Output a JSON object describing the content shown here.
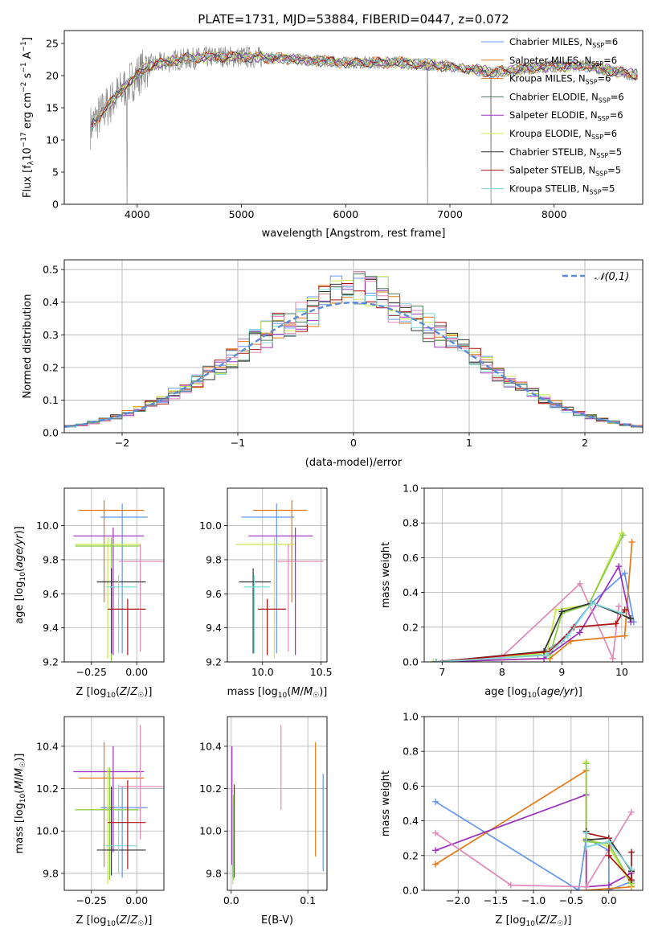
{
  "title": "PLATE=1731, MJD=53884, FIBERID=0447, z=0.072",
  "colors": {
    "Chabrier MILES": "#6495ed",
    "Salpeter MILES": "#e47916",
    "Kroupa MILES": "#d8782f",
    "Chabrier ELODIE": "#4a7a5a",
    "Salpeter ELODIE": "#9b30c0",
    "Kroupa ELODIE": "#c8e84a",
    "Chabrier STELIB": "#333333",
    "Salpeter STELIB": "#aa1111",
    "Kroupa STELIB": "#7fd6dc",
    "extra_pink": "#e088b8",
    "extra_green": "#88cc44",
    "gaussian": "#5b8bd6",
    "grid": "#b0b0b0",
    "data_spectrum": "#808080"
  },
  "chart_data": [
    {
      "id": "spectrum",
      "type": "line",
      "xlabel": "wavelength [Angstrom, rest frame]",
      "ylabel": "Flux [f_λ 10^-17 erg cm^-2 s^-1 A^-1]",
      "xlim": [
        3300,
        8850
      ],
      "ylim": [
        0,
        27
      ],
      "xticks": [
        4000,
        5000,
        6000,
        7000,
        8000
      ],
      "yticks": [
        0,
        5,
        10,
        15,
        20,
        25
      ],
      "grid": false,
      "legend_position": "top-right",
      "series": [
        {
          "name": "Chabrier MILES, N_SSP=6"
        },
        {
          "name": "Salpeter MILES, N_SSP=6"
        },
        {
          "name": "Kroupa MILES, N_SSP=6"
        },
        {
          "name": "Chabrier ELODIE, N_SSP=6"
        },
        {
          "name": "Salpeter ELODIE, N_SSP=6"
        },
        {
          "name": "Kroupa ELODIE, N_SSP=6"
        },
        {
          "name": "Chabrier STELIB, N_SSP=5"
        },
        {
          "name": "Salpeter STELIB, N_SSP=5"
        },
        {
          "name": "Kroupa STELIB, N_SSP=5"
        }
      ],
      "continuum_anchor": {
        "x": [
          3550,
          3700,
          3900,
          4100,
          4400,
          4800,
          5200,
          5600,
          6000,
          6500,
          7000,
          7400,
          7700,
          8000,
          8300,
          8800
        ],
        "y": [
          12.0,
          15.0,
          18.5,
          21.5,
          22.5,
          23.0,
          22.8,
          22.5,
          22.0,
          22.0,
          21.5,
          20.5,
          21.0,
          21.5,
          21.5,
          20.0
        ]
      }
    },
    {
      "id": "residuals",
      "type": "histogram",
      "xlabel": "(data-model)/error",
      "ylabel": "Normed distribution",
      "xlim": [
        -2.5,
        2.5
      ],
      "ylim": [
        0,
        0.53
      ],
      "xticks": [
        -2,
        -1,
        0,
        1,
        2
      ],
      "yticks": [
        0.0,
        0.1,
        0.2,
        0.3,
        0.4,
        0.5
      ],
      "grid": true,
      "legend": "𝒩(0,1)",
      "legend_position": "top-right",
      "bin_width": 0.1
    },
    {
      "id": "age_vs_Z",
      "type": "errorbar",
      "xlabel": "Z [log10(Z/Z☉)]",
      "ylabel": "age  [log10(age/yr)]",
      "xlim": [
        -0.4,
        0.15
      ],
      "ylim": [
        9.2,
        10.22
      ],
      "xticks": [
        -0.25,
        0.0
      ],
      "yticks": [
        9.2,
        9.4,
        9.6,
        9.8,
        10.0
      ],
      "grid": true,
      "points": [
        {
          "series": "Chabrier MILES",
          "x": -0.08,
          "xerr": [
            0.12,
            0.14
          ],
          "y": 10.05,
          "yerr": [
            0.8,
            0.08
          ]
        },
        {
          "series": "Salpeter MILES",
          "x": -0.18,
          "xerr": [
            0.14,
            0.22
          ],
          "y": 10.09,
          "yerr": [
            0.54,
            0.06
          ]
        },
        {
          "series": "Salpeter ELODIE",
          "x": -0.13,
          "xerr": [
            0.22,
            0.17
          ],
          "y": 9.94,
          "yerr": [
            0.7,
            0.05
          ]
        },
        {
          "series": "Kroupa ELODIE",
          "x": -0.16,
          "xerr": [
            0.18,
            0.18
          ],
          "y": 9.89,
          "yerr": [
            0.67,
            0.04
          ]
        },
        {
          "series": "extra_green",
          "x": -0.14,
          "xerr": [
            0.2,
            0.16
          ],
          "y": 9.88,
          "yerr": [
            0.68,
            0.05
          ]
        },
        {
          "series": "extra_pink",
          "x": 0.02,
          "xerr": [
            0.12,
            0.13
          ],
          "y": 9.79,
          "yerr": [
            0.53,
            0.1
          ]
        },
        {
          "series": "Chabrier STELIB",
          "x": -0.14,
          "xerr": [
            0.08,
            0.19
          ],
          "y": 9.67,
          "yerr": [
            0.42,
            0.08
          ]
        },
        {
          "series": "Kroupa STELIB",
          "x": -0.1,
          "xerr": [
            0.07,
            0.1
          ],
          "y": 9.64,
          "yerr": [
            0.39,
            0.07
          ]
        },
        {
          "series": "Salpeter STELIB",
          "x": -0.05,
          "xerr": [
            0.11,
            0.1
          ],
          "y": 9.51,
          "yerr": [
            0.27,
            0.06
          ]
        }
      ]
    },
    {
      "id": "age_vs_mass",
      "type": "errorbar",
      "xlabel": "mass [log10(M/M☉)]",
      "ylabel": "",
      "xlim": [
        9.7,
        10.55
      ],
      "ylim": [
        9.2,
        10.22
      ],
      "xticks": [
        10.0,
        10.5
      ],
      "yticks": [
        9.2,
        9.4,
        9.6,
        9.8,
        10.0
      ],
      "grid": true,
      "points": [
        {
          "series": "Chabrier MILES",
          "x": 10.12,
          "xerr": [
            0.3,
            0.15
          ],
          "y": 10.05,
          "yerr": [
            0.8,
            0.08
          ]
        },
        {
          "series": "Salpeter MILES",
          "x": 10.25,
          "xerr": [
            0.33,
            0.13
          ],
          "y": 10.09,
          "yerr": [
            0.54,
            0.06
          ]
        },
        {
          "series": "Salpeter ELODIE",
          "x": 10.28,
          "xerr": [
            0.4,
            0.15
          ],
          "y": 9.94,
          "yerr": [
            0.7,
            0.05
          ]
        },
        {
          "series": "Kroupa ELODIE",
          "x": 10.1,
          "xerr": [
            0.33,
            0.17
          ],
          "y": 9.89,
          "yerr": [
            0.67,
            0.04
          ]
        },
        {
          "series": "extra_pink",
          "x": 10.22,
          "xerr": [
            0.1,
            0.3
          ],
          "y": 9.79,
          "yerr": [
            0.53,
            0.1
          ]
        },
        {
          "series": "Chabrier STELIB",
          "x": 9.92,
          "xerr": [
            0.12,
            0.15
          ],
          "y": 9.67,
          "yerr": [
            0.42,
            0.08
          ]
        },
        {
          "series": "Kroupa STELIB",
          "x": 9.93,
          "xerr": [
            0.09,
            0.13
          ],
          "y": 9.64,
          "yerr": [
            0.39,
            0.07
          ]
        },
        {
          "series": "Salpeter STELIB",
          "x": 10.04,
          "xerr": [
            0.08,
            0.16
          ],
          "y": 9.51,
          "yerr": [
            0.27,
            0.06
          ]
        }
      ]
    },
    {
      "id": "weight_vs_age",
      "type": "line",
      "xlabel": "age  [log10(age/yr)]",
      "ylabel": "mass weight",
      "xlim": [
        6.7,
        10.35
      ],
      "ylim": [
        0,
        1.0
      ],
      "xticks": [
        7,
        8,
        9,
        10
      ],
      "yticks": [
        0.0,
        0.2,
        0.4,
        0.6,
        0.8,
        1.0
      ],
      "grid": true,
      "series": [
        {
          "series": "Chabrier MILES",
          "x": [
            6.85,
            8.6,
            9.0,
            9.5,
            10.05,
            10.2
          ],
          "y": [
            0.0,
            0.04,
            0.12,
            0.34,
            0.51,
            0.23
          ]
        },
        {
          "series": "Salpeter MILES",
          "x": [
            6.9,
            8.8,
            9.15,
            10.05,
            10.17
          ],
          "y": [
            0.0,
            0.02,
            0.12,
            0.15,
            0.69
          ]
        },
        {
          "series": "Salpeter ELODIE",
          "x": [
            6.9,
            8.7,
            9.3,
            9.95,
            10.15
          ],
          "y": [
            0.0,
            0.02,
            0.17,
            0.55,
            0.23
          ]
        },
        {
          "series": "Kroupa ELODIE",
          "x": [
            6.85,
            8.75,
            8.9,
            9.45,
            10.0
          ],
          "y": [
            0.0,
            0.05,
            0.3,
            0.33,
            0.74
          ]
        },
        {
          "series": "extra_green",
          "x": [
            6.9,
            8.8,
            9.0,
            9.45,
            10.02
          ],
          "y": [
            0.0,
            0.04,
            0.28,
            0.33,
            0.73
          ]
        },
        {
          "series": "extra_pink",
          "x": [
            7.0,
            8.0,
            9.3,
            9.85,
            9.95
          ],
          "y": [
            0.0,
            0.03,
            0.45,
            0.02,
            0.32
          ]
        },
        {
          "series": "Chabrier STELIB",
          "x": [
            6.9,
            8.7,
            9.0,
            9.5,
            10.15
          ],
          "y": [
            0.0,
            0.06,
            0.29,
            0.34,
            0.25
          ]
        },
        {
          "series": "Salpeter STELIB",
          "x": [
            6.9,
            8.8,
            9.2,
            9.9,
            10.05
          ],
          "y": [
            0.0,
            0.06,
            0.2,
            0.22,
            0.3
          ]
        },
        {
          "series": "Kroupa STELIB",
          "x": [
            6.9,
            8.75,
            9.1,
            9.5,
            10.0
          ],
          "y": [
            0.0,
            0.04,
            0.15,
            0.34,
            0.28
          ]
        }
      ]
    },
    {
      "id": "mass_vs_Z",
      "type": "errorbar",
      "xlabel": "Z [log10(Z/Z☉)]",
      "ylabel": "mass [log10(M/M☉)]",
      "xlim": [
        -0.4,
        0.15
      ],
      "ylim": [
        9.72,
        10.54
      ],
      "xticks": [
        -0.25,
        0.0
      ],
      "yticks": [
        9.8,
        10.0,
        10.2,
        10.4
      ],
      "grid": true,
      "points": [
        {
          "series": "Chabrier MILES",
          "x": -0.08,
          "xerr": [
            0.12,
            0.14
          ],
          "y": 10.11,
          "yerr": [
            0.33,
            0.1
          ]
        },
        {
          "series": "Salpeter MILES",
          "x": -0.18,
          "xerr": [
            0.14,
            0.22
          ],
          "y": 10.25,
          "yerr": [
            0.42,
            0.17
          ]
        },
        {
          "series": "Salpeter ELODIE",
          "x": -0.13,
          "xerr": [
            0.22,
            0.17
          ],
          "y": 10.28,
          "yerr": [
            0.38,
            0.12
          ]
        },
        {
          "series": "Kroupa ELODIE",
          "x": -0.16,
          "xerr": [
            0.18,
            0.18
          ],
          "y": 10.1,
          "yerr": [
            0.35,
            0.2
          ]
        },
        {
          "series": "extra_green",
          "x": -0.15,
          "xerr": [
            0.19,
            0.16
          ],
          "y": 10.1,
          "yerr": [
            0.33,
            0.2
          ]
        },
        {
          "series": "extra_pink",
          "x": 0.02,
          "xerr": [
            0.12,
            0.13
          ],
          "y": 10.21,
          "yerr": [
            0.25,
            0.29
          ]
        },
        {
          "series": "Chabrier STELIB",
          "x": -0.14,
          "xerr": [
            0.08,
            0.19
          ],
          "y": 9.91,
          "yerr": [
            0.12,
            0.3
          ]
        },
        {
          "series": "Kroupa STELIB",
          "x": -0.1,
          "xerr": [
            0.07,
            0.1
          ],
          "y": 9.93,
          "yerr": [
            0.13,
            0.29
          ]
        },
        {
          "series": "Salpeter STELIB",
          "x": -0.05,
          "xerr": [
            0.11,
            0.1
          ],
          "y": 10.04,
          "yerr": [
            0.22,
            0.2
          ]
        }
      ]
    },
    {
      "id": "mass_vs_ebv",
      "type": "errorbar",
      "xlabel": "E(B-V)",
      "ylabel": "",
      "xlim": [
        -0.005,
        0.125
      ],
      "ylim": [
        9.72,
        10.54
      ],
      "xticks": [
        0.0,
        0.1
      ],
      "yticks": [
        9.8,
        10.0,
        10.2,
        10.4
      ],
      "grid": true,
      "points": [
        {
          "series": "Chabrier MILES",
          "x": 0.12,
          "y": 10.04,
          "yerr": [
            0.23,
            0.23
          ]
        },
        {
          "series": "Salpeter MILES",
          "x": 0.11,
          "y": 10.15,
          "yerr": [
            0.27,
            0.27
          ]
        },
        {
          "series": "extra_pink",
          "x": 0.065,
          "y": 10.3,
          "yerr": [
            0.2,
            0.2
          ]
        },
        {
          "series": "Salpeter ELODIE",
          "x": 0.001,
          "y": 10.12,
          "yerr": [
            0.28,
            0.28
          ]
        },
        {
          "series": "Kroupa ELODIE",
          "x": 0.002,
          "y": 10.0,
          "yerr": [
            0.25,
            0.25
          ]
        },
        {
          "series": "Salpeter STELIB",
          "x": 0.004,
          "y": 10.0,
          "yerr": [
            0.22,
            0.22
          ]
        },
        {
          "series": "extra_green",
          "x": 0.003,
          "y": 9.97,
          "yerr": [
            0.2,
            0.2
          ]
        },
        {
          "series": "Kroupa STELIB",
          "x": 0.002,
          "y": 9.95,
          "yerr": [
            0.17,
            0.17
          ]
        }
      ]
    },
    {
      "id": "weight_vs_Z",
      "type": "line",
      "xlabel": "Z [log10(Z/Z☉)]",
      "ylabel": "mass weight",
      "xlim": [
        -2.45,
        0.45
      ],
      "ylim": [
        0,
        1.0
      ],
      "xticks": [
        -2.0,
        -1.5,
        -1.0,
        -0.5,
        0.0
      ],
      "yticks": [
        0.0,
        0.2,
        0.4,
        0.6,
        0.8,
        1.0
      ],
      "grid": true,
      "series": [
        {
          "series": "Chabrier MILES",
          "x": [
            -2.3,
            -0.4,
            -0.3,
            0.0,
            0.0,
            0.3
          ],
          "y": [
            0.51,
            0.0,
            0.3,
            0.23,
            0.0,
            0.05
          ]
        },
        {
          "series": "Salpeter MILES",
          "x": [
            -2.3,
            -0.3,
            -0.3,
            0.3,
            0.3
          ],
          "y": [
            0.15,
            0.69,
            0.0,
            0.02,
            0.1
          ]
        },
        {
          "series": "Salpeter ELODIE",
          "x": [
            -2.3,
            -0.3,
            -0.3,
            0.0,
            0.3
          ],
          "y": [
            0.23,
            0.55,
            0.02,
            0.03,
            0.1
          ]
        },
        {
          "series": "Kroupa ELODIE",
          "x": [
            -0.3,
            -0.3,
            0.0,
            0.3
          ],
          "y": [
            0.74,
            0.3,
            0.25,
            0.03
          ]
        },
        {
          "series": "extra_green",
          "x": [
            -0.3,
            -0.3,
            0.0,
            0.3
          ],
          "y": [
            0.73,
            0.28,
            0.27,
            0.04
          ]
        },
        {
          "series": "extra_pink",
          "x": [
            -2.3,
            -1.3,
            -0.3,
            0.3
          ],
          "y": [
            0.33,
            0.03,
            0.02,
            0.45
          ]
        },
        {
          "series": "Chabrier STELIB",
          "x": [
            -0.3,
            -0.3,
            0.0,
            0.3
          ],
          "y": [
            0.34,
            0.29,
            0.3,
            0.11
          ]
        },
        {
          "series": "Salpeter STELIB",
          "x": [
            -0.3,
            0.0,
            0.0,
            0.3,
            0.3
          ],
          "y": [
            0.33,
            0.3,
            0.2,
            0.06,
            0.22
          ]
        },
        {
          "series": "Kroupa STELIB",
          "x": [
            -0.3,
            -0.3,
            0.0,
            0.3
          ],
          "y": [
            0.33,
            0.25,
            0.28,
            0.12
          ]
        }
      ]
    }
  ]
}
